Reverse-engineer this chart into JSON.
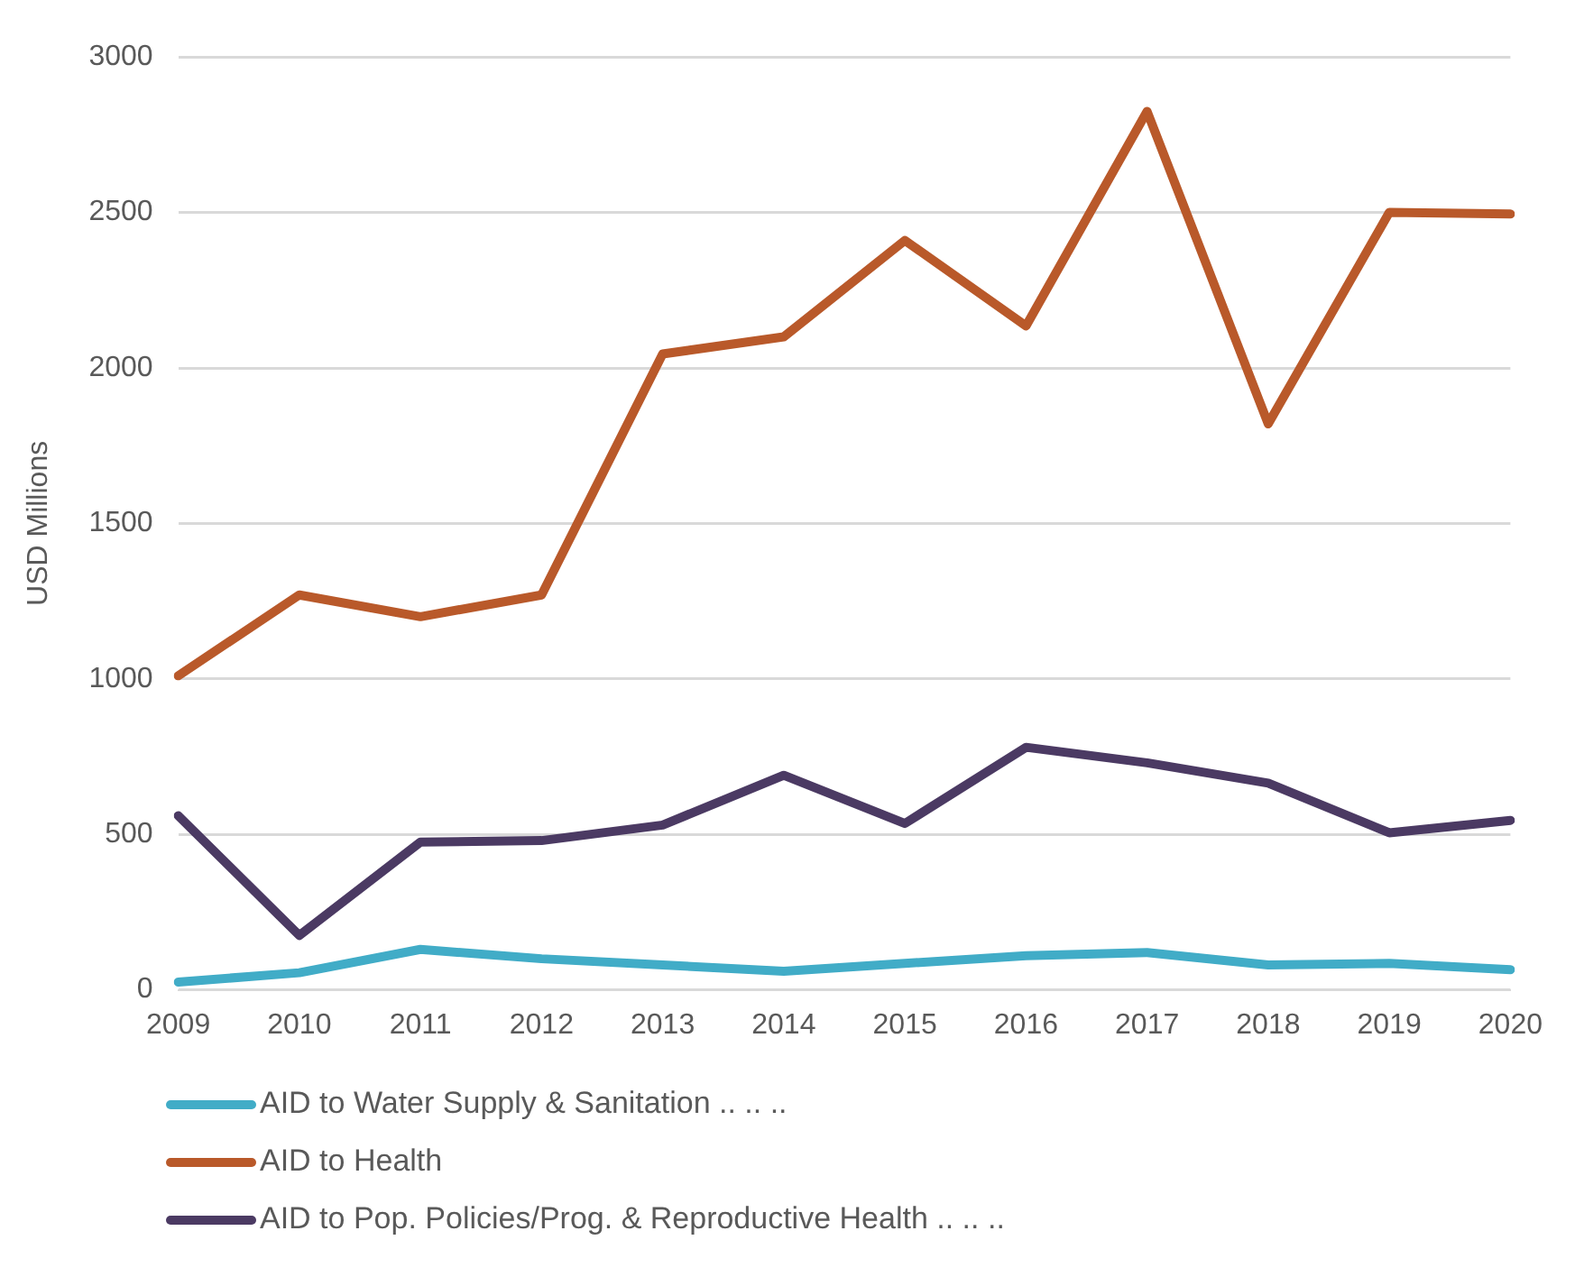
{
  "chart_data": {
    "type": "line",
    "ylabel": "USD Millions",
    "categories": [
      "2009",
      "2010",
      "2011",
      "2012",
      "2013",
      "2014",
      "2015",
      "2016",
      "2017",
      "2018",
      "2019",
      "2020"
    ],
    "series": [
      {
        "name": "AID to Water Supply & Sanitation  .. .. ..",
        "color": "#41acc7",
        "values": [
          25,
          55,
          130,
          100,
          80,
          60,
          85,
          110,
          120,
          80,
          85,
          65
        ]
      },
      {
        "name": "AID to Health",
        "color": "#b9592a",
        "values": [
          1010,
          1270,
          1200,
          1270,
          2045,
          2100,
          2410,
          2135,
          2825,
          1820,
          2500,
          2495
        ]
      },
      {
        "name": "AID to Pop. Policies/Prog. & Reproductive Health .. .. ..",
        "color": "#4b3a63",
        "values": [
          560,
          175,
          475,
          480,
          530,
          690,
          535,
          780,
          730,
          665,
          505,
          545
        ]
      }
    ],
    "ylim": [
      0,
      3000
    ],
    "yticks": [
      0,
      500,
      1000,
      1500,
      2000,
      2500,
      3000
    ],
    "grid": "y",
    "legend": "bottom",
    "marker": "none",
    "line_style": "solid"
  }
}
